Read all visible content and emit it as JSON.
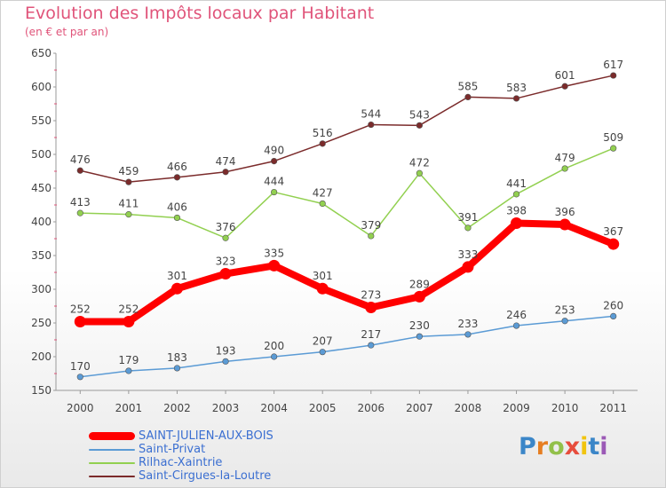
{
  "chart_data": {
    "type": "line",
    "title": "Evolution des Impôts locaux par Habitant",
    "subtitle": "(en € et par an)",
    "x": [
      "2000",
      "2001",
      "2002",
      "2003",
      "2004",
      "2005",
      "2006",
      "2007",
      "2008",
      "2009",
      "2010",
      "2011"
    ],
    "yticks": [
      150,
      200,
      250,
      300,
      350,
      400,
      450,
      500,
      550,
      600,
      650
    ],
    "ylim": [
      150,
      650
    ],
    "grid": false,
    "legend_position": "bottom-left",
    "series": [
      {
        "name": "SAINT-JULIEN-AUX-BOIS",
        "color": "#ff0000",
        "values": [
          252,
          252,
          301,
          323,
          335,
          301,
          273,
          289,
          333,
          398,
          396,
          367
        ]
      },
      {
        "name": "Saint-Privat",
        "color": "#5b9bd5",
        "values": [
          170,
          179,
          183,
          193,
          200,
          207,
          217,
          230,
          233,
          246,
          253,
          260
        ]
      },
      {
        "name": "Rilhac-Xaintrie",
        "color": "#92d050",
        "values": [
          413,
          411,
          406,
          376,
          444,
          427,
          379,
          472,
          391,
          441,
          479,
          509
        ]
      },
      {
        "name": "Saint-Cirgues-la-Loutre",
        "color": "#7b2b2b",
        "values": [
          476,
          459,
          466,
          474,
          490,
          516,
          544,
          543,
          585,
          583,
          601,
          617
        ]
      }
    ]
  },
  "logo": {
    "letters": [
      "P",
      "r",
      "o",
      "x",
      "i",
      "t",
      "i"
    ],
    "colors": [
      "#3b86c8",
      "#e67e22",
      "#92c04a",
      "#e74c3c",
      "#f1c40f",
      "#3b86c8",
      "#9b59b6"
    ]
  }
}
